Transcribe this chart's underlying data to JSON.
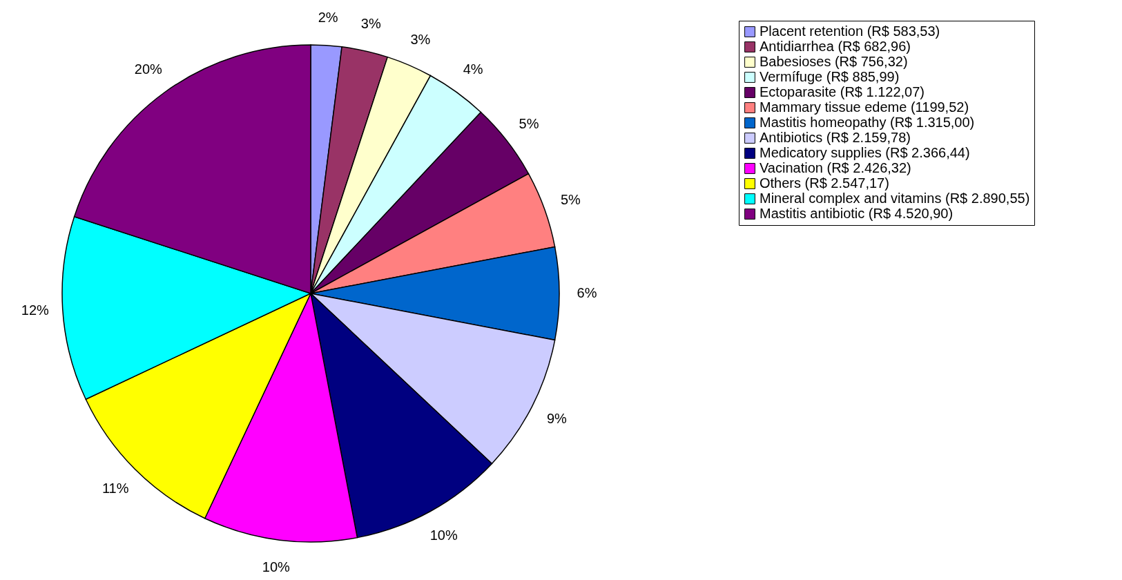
{
  "chart_data": {
    "type": "pie",
    "categories": [
      "Placent retention (R$ 583,53)",
      "Antidiarrhea  (R$ 682,96)",
      "Babesioses (R$ 756,32)",
      "Vermífuge (R$ 885,99)",
      "Ectoparasite (R$ 1.122,07)",
      "Mammary tissue edeme (1199,52)",
      "Mastitis homeopathy (R$ 1.315,00)",
      "Antibiotics (R$ 2.159,78)",
      "Medicatory supplies (R$ 2.366,44)",
      "Vacination (R$ 2.426,32)",
      "Others (R$ 2.547,17)",
      "Mineral complex and vitamins (R$ 2.890,55)",
      "Mastitis antibiotic (R$ 4.520,90)"
    ],
    "values": [
      2,
      3,
      3,
      4,
      5,
      5,
      6,
      9,
      10,
      10,
      11,
      12,
      20
    ],
    "value_labels": [
      "2%",
      "3%",
      "3%",
      "4%",
      "5%",
      "5%",
      "6%",
      "9%",
      "10%",
      "10%",
      "11%",
      "12%",
      "20%"
    ],
    "colors": [
      "#9999ff",
      "#993366",
      "#ffffcc",
      "#ccffff",
      "#660066",
      "#ff8080",
      "#0066cc",
      "#ccccff",
      "#000080",
      "#ff00ff",
      "#ffff00",
      "#00ffff",
      "#800080"
    ],
    "legend": "right"
  }
}
